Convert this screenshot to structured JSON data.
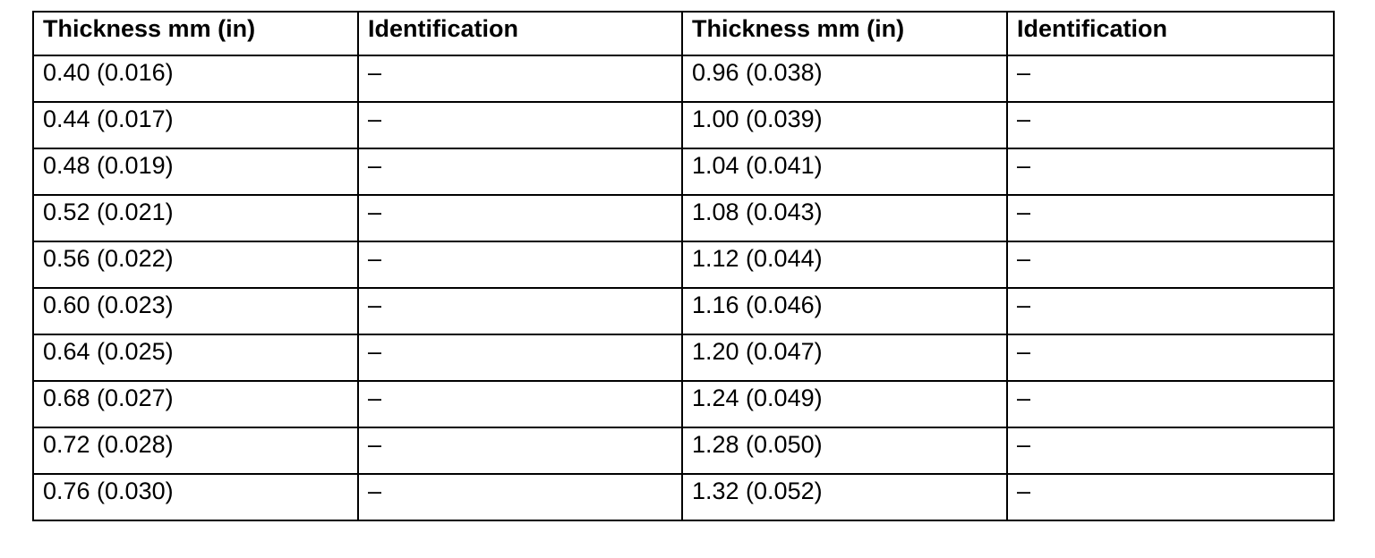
{
  "table": {
    "headers": [
      "Thickness mm (in)",
      "Identification",
      "Thickness mm (in)",
      "Identification"
    ],
    "rows": [
      [
        "0.40 (0.016)",
        "–",
        "0.96 (0.038)",
        "–"
      ],
      [
        "0.44 (0.017)",
        "–",
        "1.00 (0.039)",
        "–"
      ],
      [
        "0.48 (0.019)",
        "–",
        "1.04 (0.041)",
        "–"
      ],
      [
        "0.52 (0.021)",
        "–",
        "1.08 (0.043)",
        "–"
      ],
      [
        "0.56 (0.022)",
        "–",
        "1.12 (0.044)",
        "–"
      ],
      [
        "0.60 (0.023)",
        "–",
        "1.16 (0.046)",
        "–"
      ],
      [
        "0.64 (0.025)",
        "–",
        "1.20 (0.047)",
        "–"
      ],
      [
        "0.68 (0.027)",
        "–",
        "1.24 (0.049)",
        "–"
      ],
      [
        "0.72 (0.028)",
        "–",
        "1.28 (0.050)",
        "–"
      ],
      [
        "0.76 (0.030)",
        "–",
        "1.32 (0.052)",
        "–"
      ]
    ]
  }
}
